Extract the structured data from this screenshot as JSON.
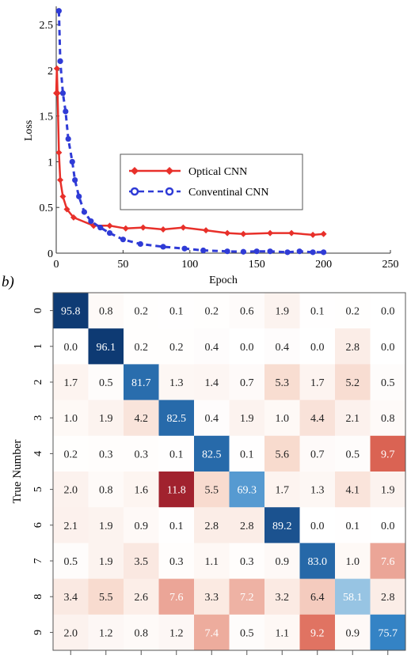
{
  "panel_b_label": "b)",
  "chart_data": [
    {
      "type": "line",
      "title": "",
      "xlabel": "Epoch",
      "ylabel": "Loss",
      "xlim": [
        0,
        250
      ],
      "ylim": [
        0,
        2.7
      ],
      "xticks": [
        0,
        50,
        100,
        150,
        200,
        250
      ],
      "yticks": [
        0,
        0.5,
        1,
        1.5,
        2,
        2.5
      ],
      "ytick_labels": [
        "0",
        "0.5",
        "1",
        "1.5",
        "2",
        "2.5"
      ],
      "grid": false,
      "legend_position": "center-right",
      "series": [
        {
          "name": "Optical CNN",
          "color": "#e8302a",
          "marker": "filled-diamond",
          "line_style": "solid",
          "x": [
            0,
            0.5,
            1,
            2,
            3,
            5,
            8,
            13,
            28,
            40,
            52,
            65,
            80,
            95,
            112,
            128,
            140,
            160,
            176,
            192,
            200
          ],
          "y": [
            1.75,
            2.02,
            1.75,
            1.1,
            0.8,
            0.62,
            0.48,
            0.39,
            0.3,
            0.3,
            0.27,
            0.28,
            0.26,
            0.28,
            0.25,
            0.22,
            0.21,
            0.22,
            0.22,
            0.2,
            0.21
          ]
        },
        {
          "name": "Conventinal CNN",
          "color": "#2f3bd6",
          "marker": "filled-circle",
          "line_style": "dashed",
          "x": [
            2,
            3,
            5,
            7,
            9,
            12,
            14,
            17,
            21,
            26,
            33,
            40,
            50,
            63,
            80,
            96,
            110,
            128,
            140,
            150,
            160,
            173,
            182,
            192,
            200
          ],
          "y": [
            2.65,
            2.1,
            1.75,
            1.55,
            1.25,
            1.0,
            0.8,
            0.62,
            0.45,
            0.35,
            0.28,
            0.22,
            0.15,
            0.1,
            0.07,
            0.05,
            0.03,
            0.02,
            0.015,
            0.02,
            0.02,
            0.01,
            0.02,
            0.01,
            0.01
          ]
        }
      ]
    },
    {
      "type": "heatmap",
      "ylabel": "True Number",
      "row_labels": [
        "0",
        "1",
        "2",
        "3",
        "4",
        "5",
        "6",
        "7",
        "8",
        "9"
      ],
      "colorscale": {
        "high_blue": "#0e3a73",
        "mid_blue": "#3585c8",
        "light_blue": "#a9cfe8",
        "high_red": "#9b1c2a",
        "mid_red": "#dd6655",
        "light_red": "#f7d8cb"
      },
      "values": [
        [
          "95.8",
          "0.8",
          "0.2",
          "0.1",
          "0.2",
          "0.6",
          "1.9",
          "0.1",
          "0.2",
          "0.0"
        ],
        [
          "0.0",
          "96.1",
          "0.2",
          "0.2",
          "0.4",
          "0.0",
          "0.4",
          "0.0",
          "2.8",
          "0.0"
        ],
        [
          "1.7",
          "0.5",
          "81.7",
          "1.3",
          "1.4",
          "0.7",
          "5.3",
          "1.7",
          "5.2",
          "0.5"
        ],
        [
          "1.0",
          "1.9",
          "4.2",
          "82.5",
          "0.4",
          "1.9",
          "1.0",
          "4.4",
          "2.1",
          "0.8"
        ],
        [
          "0.2",
          "0.3",
          "0.3",
          "0.1",
          "82.5",
          "0.1",
          "5.6",
          "0.7",
          "0.5",
          "9.7"
        ],
        [
          "2.0",
          "0.8",
          "1.6",
          "11.8",
          "5.5",
          "69.3",
          "1.7",
          "1.3",
          "4.1",
          "1.9"
        ],
        [
          "2.1",
          "1.9",
          "0.9",
          "0.1",
          "2.8",
          "2.8",
          "89.2",
          "0.0",
          "0.1",
          "0.0"
        ],
        [
          "0.5",
          "1.9",
          "3.5",
          "0.3",
          "1.1",
          "0.3",
          "0.9",
          "83.0",
          "1.0",
          "7.6"
        ],
        [
          "3.4",
          "5.5",
          "2.6",
          "7.6",
          "3.3",
          "7.2",
          "3.2",
          "6.4",
          "58.1",
          "2.8"
        ],
        [
          "2.0",
          "1.2",
          "0.8",
          "1.2",
          "7.4",
          "0.5",
          "1.1",
          "9.2",
          "0.9",
          "75.7"
        ]
      ]
    }
  ]
}
